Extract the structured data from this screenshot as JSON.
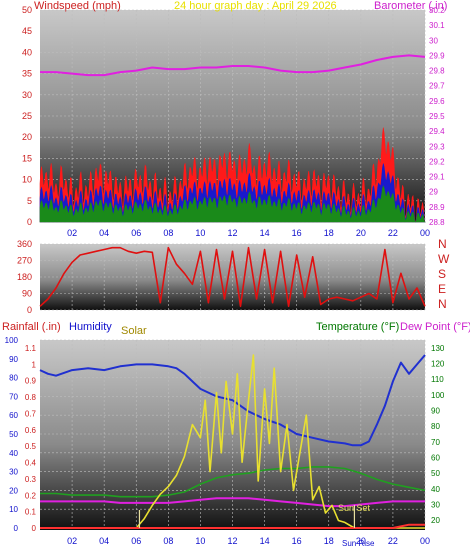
{
  "header": {
    "left_title": "Windspeed (mph)",
    "center_title": "24 hour graph day : April 29 2026",
    "right_title": "Barometer (.in)"
  },
  "colors": {
    "wind": "#ff1a1a",
    "gust_band": "#1a1acc",
    "avg_band": "#1a8a1a",
    "barometer": "#e020e0",
    "direction": "#e01010",
    "rainfall": "#ff3030",
    "humidity": "#2030d0",
    "solar": "#e8e030",
    "temperature": "#20a020",
    "dewpoint": "#e020e0",
    "title_red": "#cc2020",
    "title_yellow": "#e8e000",
    "title_magenta": "#cc20cc",
    "title_blue": "#1010cc",
    "title_green": "#007700",
    "title_olive": "#a08800"
  },
  "chart_data": [
    {
      "type": "line",
      "id": "wind-panel",
      "x_ticks": [
        "02",
        "04",
        "06",
        "08",
        "10",
        "12",
        "14",
        "16",
        "18",
        "20",
        "22",
        "00"
      ],
      "ylim_left": [
        0,
        50
      ],
      "left_ticks": [
        0,
        5,
        10,
        15,
        20,
        25,
        30,
        35,
        40,
        45,
        50
      ],
      "ylim_right": [
        28.8,
        30.2
      ],
      "right_ticks": [
        "28.8",
        "28.9",
        "29",
        "29.1",
        "29.2",
        "29.3",
        "29.4",
        "29.5",
        "29.6",
        "29.7",
        "29.8",
        "29.9",
        "30",
        "30.1",
        "30.2"
      ],
      "grid": true,
      "series": [
        {
          "name": "Windspeed (mph)",
          "axis": "left",
          "x": [
            0,
            0.5,
            1,
            1.5,
            2,
            2.5,
            3,
            3.5,
            4,
            4.5,
            5,
            5.5,
            6,
            6.5,
            7,
            7.5,
            8,
            8.5,
            9,
            9.5,
            10,
            10.5,
            11,
            11.5,
            12,
            12.5,
            13,
            13.5,
            14,
            14.5,
            15,
            15.5,
            16,
            16.5,
            17,
            17.5,
            18,
            18.5,
            19,
            19.5,
            20,
            20.5,
            21,
            21.5,
            22,
            22.5,
            23,
            23.5,
            24
          ],
          "values": [
            9,
            11,
            8,
            10,
            6,
            8,
            7,
            11,
            10,
            9,
            7,
            8,
            9,
            10,
            8,
            7,
            6,
            7,
            10,
            12,
            11,
            13,
            12,
            14,
            13,
            12,
            15,
            11,
            13,
            12,
            10,
            11,
            9,
            8,
            10,
            8,
            9,
            7,
            6,
            5,
            6,
            7,
            12,
            20,
            14,
            6,
            4,
            3,
            2
          ]
        },
        {
          "name": "Barometer (.in)",
          "axis": "right",
          "x": [
            0,
            1,
            2,
            3,
            4,
            5,
            6,
            7,
            8,
            9,
            10,
            11,
            12,
            13,
            14,
            15,
            16,
            17,
            18,
            19,
            20,
            21,
            22,
            23,
            24
          ],
          "values": [
            29.79,
            29.79,
            29.78,
            29.77,
            29.77,
            29.79,
            29.8,
            29.82,
            29.81,
            29.81,
            29.82,
            29.82,
            29.83,
            29.83,
            29.82,
            29.8,
            29.79,
            29.79,
            29.8,
            29.82,
            29.84,
            29.87,
            29.89,
            29.9,
            29.89
          ]
        }
      ]
    },
    {
      "type": "line",
      "id": "direction-panel",
      "left_ticks": [
        0,
        90,
        180,
        270,
        360
      ],
      "ylim": [
        0,
        360
      ],
      "compass": [
        "N",
        "W",
        "S",
        "E",
        "N"
      ],
      "series": [
        {
          "name": "Wind direction",
          "x": [
            0,
            0.5,
            1,
            1.5,
            2,
            2.5,
            3,
            3.5,
            4,
            4.5,
            5,
            5.5,
            6,
            6.5,
            7,
            7.5,
            8,
            8.5,
            9,
            9.5,
            10,
            10.5,
            11,
            11.5,
            12,
            12.5,
            13,
            13.5,
            14,
            14.5,
            15,
            15.5,
            16,
            16.5,
            17,
            17.5,
            18,
            18.5,
            19,
            19.5,
            20,
            20.5,
            21,
            21.5,
            22,
            22.5,
            23,
            23.5,
            24
          ],
          "values": [
            20,
            60,
            120,
            200,
            260,
            300,
            310,
            320,
            330,
            340,
            340,
            320,
            310,
            320,
            315,
            40,
            340,
            250,
            200,
            140,
            320,
            40,
            330,
            60,
            320,
            20,
            340,
            60,
            330,
            40,
            320,
            20,
            300,
            70,
            290,
            30,
            60,
            70,
            60,
            50,
            70,
            90,
            60,
            330,
            40,
            200,
            60,
            120,
            20
          ]
        }
      ]
    },
    {
      "type": "line",
      "id": "bottom-panel",
      "titles": {
        "rainfall": "Rainfall (.in)",
        "humidity": "Humidity",
        "solar": "Solar",
        "temperature": "Temperature (°F)",
        "dewpoint": "Dew Point (°F)"
      },
      "x_ticks": [
        "02",
        "04",
        "06",
        "08",
        "10",
        "12",
        "14",
        "16",
        "18",
        "20",
        "22",
        "00"
      ],
      "humidity_ticks": [
        0,
        10,
        20,
        30,
        40,
        50,
        60,
        70,
        80,
        90,
        100
      ],
      "rain_ticks": [
        "0",
        "0.1",
        "0.2",
        "0.3",
        "0.4",
        "0.5",
        "0.6",
        "0.7",
        "0.8",
        "0.9",
        "1",
        "1.1"
      ],
      "temp_ticks": [
        20,
        30,
        40,
        50,
        60,
        70,
        80,
        90,
        100,
        110,
        120,
        130
      ],
      "ylim_humidity": [
        0,
        100
      ],
      "ylim_temp": [
        15,
        135
      ],
      "sunrise_label": "Sun Rise",
      "sunset_label": "Sun Set",
      "sunrise_hour": 6.2,
      "sunset_hour": 19.6,
      "series": [
        {
          "name": "Humidity",
          "axis": "humidity",
          "x": [
            0,
            0.5,
            1,
            2,
            3,
            4,
            5,
            6,
            7,
            8,
            8.5,
            9,
            9.5,
            10,
            10.5,
            11,
            11.5,
            12,
            13,
            14,
            15,
            16,
            17,
            18,
            19,
            19.5,
            20,
            20.5,
            21,
            21.5,
            22,
            22.5,
            23,
            23.5,
            24
          ],
          "values": [
            84,
            82,
            81,
            84,
            85,
            84,
            86,
            87,
            87,
            86,
            85,
            82,
            78,
            74,
            72,
            70,
            69,
            68,
            62,
            58,
            55,
            50,
            48,
            46,
            45,
            44,
            44,
            46,
            55,
            65,
            78,
            88,
            82,
            87,
            92
          ]
        },
        {
          "name": "Solar",
          "axis": "humidity",
          "x": [
            0,
            6,
            6.5,
            7,
            7.5,
            8,
            8.5,
            9,
            9.5,
            10,
            10.3,
            10.6,
            11,
            11.3,
            11.6,
            12,
            12.3,
            12.6,
            13,
            13.3,
            13.6,
            14,
            14.3,
            14.6,
            15,
            15.4,
            15.8,
            16.2,
            16.6,
            17,
            17.4,
            17.8,
            18.2,
            18.6,
            19,
            19.6,
            20,
            24
          ],
          "values": [
            0,
            0,
            5,
            12,
            18,
            22,
            28,
            38,
            55,
            48,
            68,
            30,
            72,
            40,
            78,
            50,
            82,
            35,
            68,
            92,
            25,
            74,
            45,
            85,
            30,
            55,
            20,
            40,
            60,
            15,
            22,
            8,
            12,
            4,
            3,
            0,
            0,
            0
          ]
        },
        {
          "name": "Temperature (°F)",
          "axis": "temp",
          "x": [
            0,
            1,
            2,
            3,
            4,
            5,
            6,
            7,
            8,
            9,
            10,
            11,
            12,
            13,
            14,
            15,
            16,
            17,
            18,
            19,
            20,
            21,
            22,
            23,
            24
          ],
          "values": [
            37,
            37,
            36,
            36,
            36,
            35,
            35,
            35,
            36,
            38,
            43,
            47,
            49,
            50,
            52,
            53,
            53,
            54,
            54,
            53,
            50,
            46,
            43,
            41,
            39
          ]
        },
        {
          "name": "Dew Point (°F)",
          "axis": "temp",
          "x": [
            0,
            1,
            2,
            3,
            4,
            5,
            6,
            7,
            8,
            9,
            10,
            11,
            12,
            13,
            14,
            15,
            16,
            17,
            18,
            19,
            20,
            21,
            22,
            23,
            24
          ],
          "values": [
            32,
            32,
            32,
            32,
            32,
            31,
            31,
            31,
            31,
            32,
            33,
            34,
            34,
            34,
            33,
            32,
            31,
            30,
            29,
            29,
            30,
            31,
            32,
            32,
            32
          ]
        },
        {
          "name": "Rainfall (.in)",
          "axis": "rain",
          "x": [
            0,
            22,
            22.5,
            23,
            23.5,
            24
          ],
          "values": [
            0,
            0,
            0.01,
            0.02,
            0.02,
            0.02
          ]
        }
      ]
    }
  ]
}
